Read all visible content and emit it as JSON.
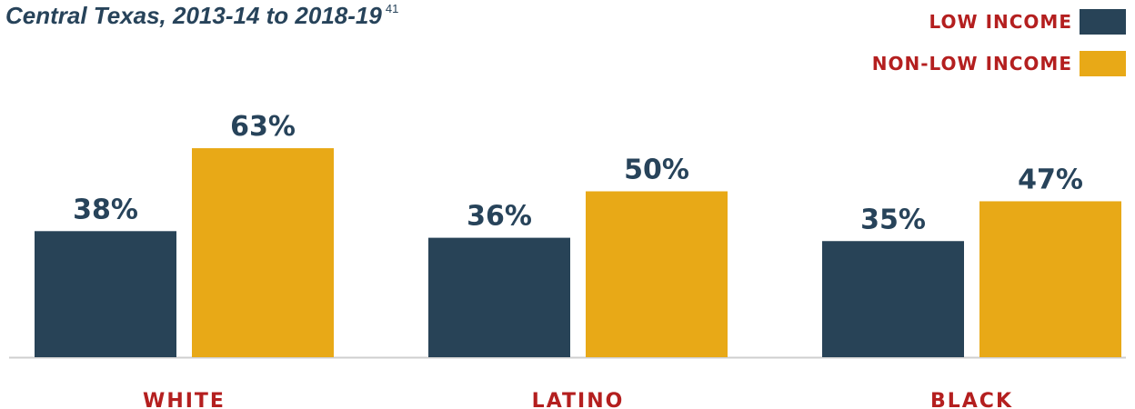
{
  "subtitle": "Central Texas, 2013-14 to 2018-19",
  "footnote_ref": "41",
  "colors": {
    "low_income": "#284357",
    "non_low_income": "#e8a917",
    "category_label": "#b41f1f",
    "value_label": "#27435a",
    "baseline": "#cfcfcf"
  },
  "legend": [
    {
      "label": "LOW INCOME",
      "color": "#284357"
    },
    {
      "label": "NON-LOW INCOME",
      "color": "#e8a917"
    }
  ],
  "chart_data": {
    "type": "bar",
    "categories": [
      "WHITE",
      "LATINO",
      "BLACK"
    ],
    "series": [
      {
        "name": "LOW INCOME",
        "values": [
          38,
          36,
          35
        ],
        "labels": [
          "38%",
          "36%",
          "35%"
        ]
      },
      {
        "name": "NON-LOW INCOME",
        "values": [
          63,
          50,
          47
        ],
        "labels": [
          "63%",
          "50%",
          "47%"
        ]
      }
    ],
    "title": "",
    "xlabel": "",
    "ylabel": "",
    "ylim": [
      0,
      100
    ],
    "grid": false,
    "legend_position": "top-right"
  }
}
